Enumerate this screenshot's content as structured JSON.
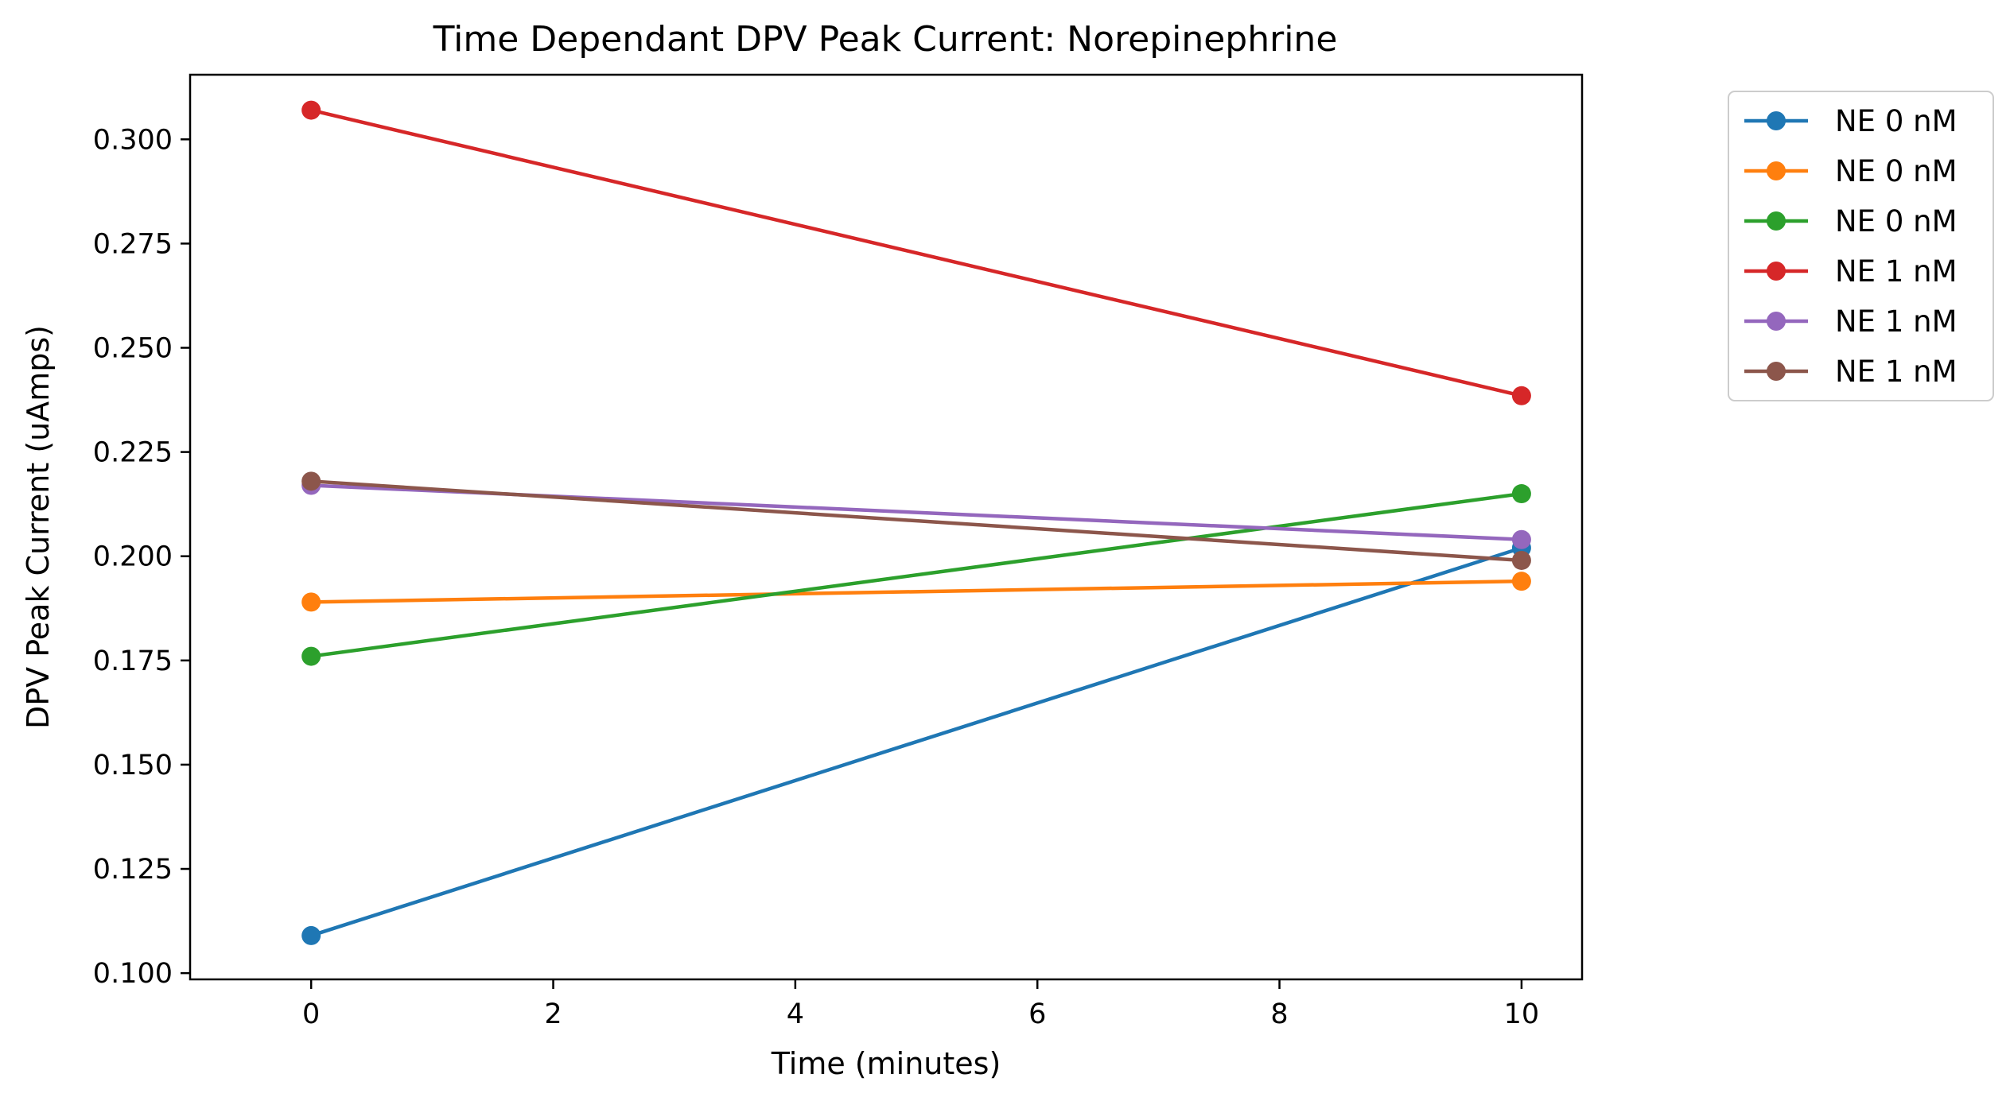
{
  "chart_data": {
    "type": "line",
    "title": "Time Dependant DPV Peak Current: Norepinephrine",
    "xlabel": "Time (minutes)",
    "ylabel": "DPV Peak Current (uAmps)",
    "xlim": [
      -1,
      10.5
    ],
    "ylim": [
      0.0985,
      0.3155
    ],
    "xticks": [
      0,
      2,
      4,
      6,
      8,
      10
    ],
    "xtick_labels": [
      "0",
      "2",
      "4",
      "6",
      "8",
      "10"
    ],
    "yticks": [
      0.1,
      0.125,
      0.15,
      0.175,
      0.2,
      0.225,
      0.25,
      0.275,
      0.3
    ],
    "ytick_labels": [
      "0.100",
      "0.125",
      "0.150",
      "0.175",
      "0.200",
      "0.225",
      "0.250",
      "0.275",
      "0.300"
    ],
    "grid": false,
    "legend": "outside-right-top",
    "x": [
      0,
      10
    ],
    "series": [
      {
        "name": "NE 0 nM",
        "color": "#1f77b4",
        "values": [
          0.109,
          0.202
        ]
      },
      {
        "name": "NE 0 nM",
        "color": "#ff7f0e",
        "values": [
          0.189,
          0.194
        ]
      },
      {
        "name": "NE 0 nM",
        "color": "#2ca02c",
        "values": [
          0.176,
          0.215
        ]
      },
      {
        "name": "NE 1 nM",
        "color": "#d62728",
        "values": [
          0.307,
          0.2385
        ]
      },
      {
        "name": "NE 1 nM",
        "color": "#9467bd",
        "values": [
          0.217,
          0.204
        ]
      },
      {
        "name": "NE 1 nM",
        "color": "#8c564b",
        "values": [
          0.218,
          0.199
        ]
      }
    ]
  }
}
